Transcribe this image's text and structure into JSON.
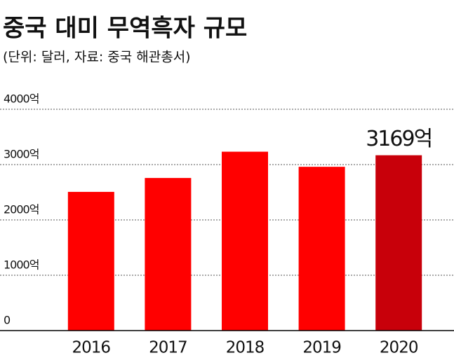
{
  "chart_data": {
    "type": "bar",
    "title": "중국 대미 무역흑자 규모",
    "subtitle": "(단위: 달러, 자료: 중국 해관총서)",
    "categories": [
      "2016",
      "2017",
      "2018",
      "2019",
      "2020"
    ],
    "values": [
      2507,
      2758,
      3233,
      2960,
      3169
    ],
    "value_labels": [
      null,
      null,
      null,
      null,
      "3169억"
    ],
    "colors": [
      "#ff0000",
      "#ff0000",
      "#ff0000",
      "#ff0000",
      "#c8000a"
    ],
    "ylim": [
      0,
      4000
    ],
    "yticks": [
      0,
      {
        "value": 1000,
        "label": "1000억"
      },
      {
        "value": 2000,
        "label": "2000억"
      },
      {
        "value": 3000,
        "label": "3000억"
      },
      {
        "value": 4000,
        "label": "4000억"
      }
    ],
    "grid": true
  }
}
